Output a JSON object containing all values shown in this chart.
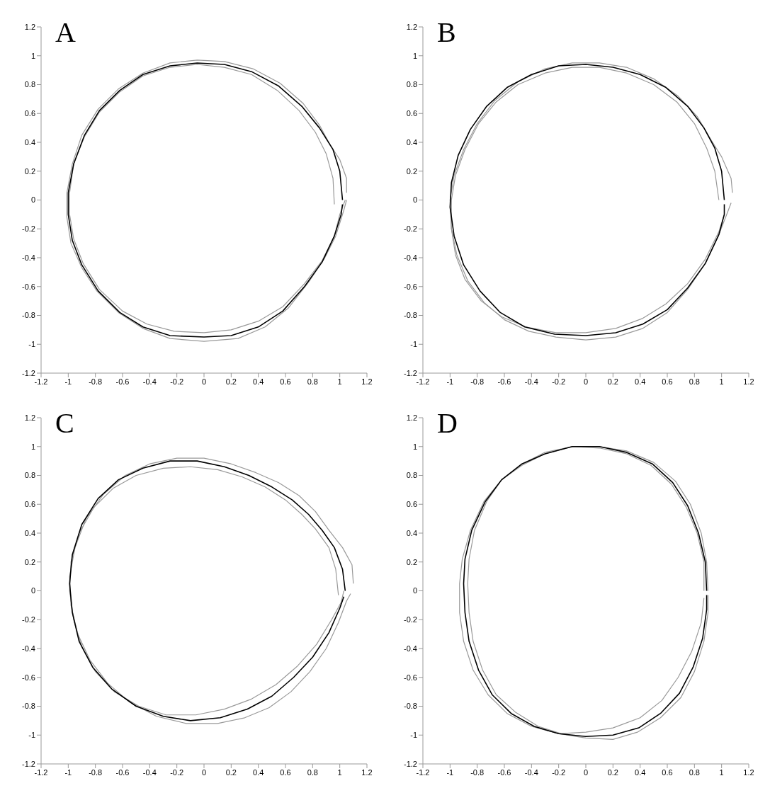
{
  "chart_data": [
    {
      "type": "line",
      "title": "A",
      "xlim": [
        -1.2,
        1.2
      ],
      "ylim": [
        -1.2,
        1.2
      ],
      "xticks": [
        -1.2,
        -1,
        -0.8,
        -0.6,
        -0.4,
        -0.2,
        0,
        0.2,
        0.4,
        0.6,
        0.8,
        1,
        1.2
      ],
      "yticks": [
        -1.2,
        -1,
        -0.8,
        -0.6,
        -0.4,
        -0.2,
        0,
        0.2,
        0.4,
        0.6,
        0.8,
        1,
        1.2
      ],
      "marker": "none",
      "series": [
        {
          "color": "#999999",
          "x": [
            1.05,
            1.05,
            1.0,
            0.93,
            0.85,
            0.73,
            0.56,
            0.36,
            0.15,
            -0.05,
            -0.25,
            -0.45,
            -0.63,
            -0.78,
            -0.9,
            -0.97,
            -1.01,
            -1.01,
            -0.98,
            -0.9,
            -0.79,
            -0.63,
            -0.45,
            -0.25,
            0,
            0.25,
            0.45,
            0.62,
            0.77,
            0.89,
            0.97,
            1.03,
            1.05
          ],
          "values": [
            0.05,
            0.15,
            0.28,
            0.38,
            0.52,
            0.67,
            0.81,
            0.91,
            0.96,
            0.97,
            0.95,
            0.88,
            0.77,
            0.63,
            0.45,
            0.25,
            0.05,
            -0.12,
            -0.3,
            -0.47,
            -0.63,
            -0.78,
            -0.89,
            -0.96,
            -0.98,
            -0.96,
            -0.88,
            -0.75,
            -0.57,
            -0.4,
            -0.25,
            -0.07,
            0
          ]
        },
        {
          "color": "#999999",
          "x": [
            0.96,
            0.95,
            0.9,
            0.82,
            0.7,
            0.54,
            0.35,
            0.15,
            -0.05,
            -0.25,
            -0.45,
            -0.62,
            -0.77,
            -0.88,
            -0.96,
            -0.99,
            -0.99,
            -0.96,
            -0.89,
            -0.77,
            -0.6,
            -0.42,
            -0.22,
            0,
            0.2,
            0.4,
            0.58,
            0.74,
            0.87,
            0.96,
            1.0,
            1.04
          ],
          "values": [
            -0.03,
            0.15,
            0.32,
            0.47,
            0.62,
            0.76,
            0.87,
            0.92,
            0.94,
            0.92,
            0.86,
            0.75,
            0.61,
            0.44,
            0.25,
            0.05,
            -0.1,
            -0.27,
            -0.44,
            -0.62,
            -0.77,
            -0.86,
            -0.91,
            -0.92,
            -0.9,
            -0.84,
            -0.74,
            -0.58,
            -0.42,
            -0.25,
            -0.1,
            0
          ]
        },
        {
          "color": "#000000",
          "x": [
            1.02,
            1.0,
            0.95,
            0.85,
            0.72,
            0.55,
            0.35,
            0.15,
            -0.05,
            -0.25,
            -0.45,
            -0.62,
            -0.77,
            -0.88,
            -0.96,
            -1.0,
            -1.0,
            -0.97,
            -0.9,
            -0.78,
            -0.62,
            -0.45,
            -0.25,
            0,
            0.2,
            0.4,
            0.58,
            0.74,
            0.87,
            0.96,
            1.01,
            1.02
          ],
          "values": [
            0,
            0.2,
            0.35,
            0.5,
            0.65,
            0.79,
            0.89,
            0.94,
            0.95,
            0.93,
            0.87,
            0.76,
            0.62,
            0.45,
            0.25,
            0.05,
            -0.1,
            -0.28,
            -0.45,
            -0.63,
            -0.78,
            -0.88,
            -0.94,
            -0.95,
            -0.94,
            -0.88,
            -0.77,
            -0.6,
            -0.43,
            -0.25,
            -0.1,
            -0.03
          ]
        }
      ]
    },
    {
      "type": "line",
      "title": "B",
      "xlim": [
        -1.2,
        1.2
      ],
      "ylim": [
        -1.2,
        1.2
      ],
      "xticks": [
        -1.2,
        -1,
        -0.8,
        -0.6,
        -0.4,
        -0.2,
        0,
        0.2,
        0.4,
        0.6,
        0.8,
        1,
        1.2
      ],
      "yticks": [
        -1.2,
        -1,
        -0.8,
        -0.6,
        -0.4,
        -0.2,
        0,
        0.2,
        0.4,
        0.6,
        0.8,
        1,
        1.2
      ],
      "marker": "none",
      "series": [
        {
          "color": "#999999",
          "x": [
            1.08,
            1.07,
            1.0,
            0.92,
            0.82,
            0.68,
            0.5,
            0.3,
            0.1,
            -0.1,
            -0.3,
            -0.5,
            -0.67,
            -0.8,
            -0.9,
            -0.97,
            -1.0,
            -0.99,
            -0.95,
            -0.87,
            -0.75,
            -0.6,
            -0.42,
            -0.22,
            0,
            0.22,
            0.42,
            0.6,
            0.75,
            0.88,
            0.98,
            1.05,
            1.07
          ],
          "values": [
            0.05,
            0.15,
            0.3,
            0.42,
            0.58,
            0.72,
            0.84,
            0.92,
            0.95,
            0.95,
            0.91,
            0.82,
            0.69,
            0.53,
            0.35,
            0.17,
            0,
            -0.2,
            -0.38,
            -0.56,
            -0.71,
            -0.83,
            -0.91,
            -0.95,
            -0.97,
            -0.95,
            -0.89,
            -0.78,
            -0.62,
            -0.44,
            -0.24,
            -0.07,
            -0.02
          ]
        },
        {
          "color": "#999999",
          "x": [
            0.98,
            0.95,
            0.89,
            0.8,
            0.67,
            0.5,
            0.3,
            0.1,
            -0.1,
            -0.3,
            -0.5,
            -0.66,
            -0.79,
            -0.89,
            -0.96,
            -0.99,
            -0.99,
            -0.96,
            -0.89,
            -0.77,
            -0.62,
            -0.44,
            -0.22,
            0,
            0.22,
            0.42,
            0.59,
            0.75,
            0.88,
            0.98,
            1.02
          ],
          "values": [
            0,
            0.2,
            0.36,
            0.53,
            0.68,
            0.8,
            0.88,
            0.92,
            0.92,
            0.88,
            0.8,
            0.68,
            0.53,
            0.35,
            0.17,
            0,
            -0.2,
            -0.38,
            -0.55,
            -0.7,
            -0.81,
            -0.88,
            -0.92,
            -0.92,
            -0.89,
            -0.82,
            -0.72,
            -0.58,
            -0.41,
            -0.22,
            -0.1
          ]
        },
        {
          "color": "#000000",
          "x": [
            1.02,
            1.0,
            0.95,
            0.87,
            0.75,
            0.59,
            0.4,
            0.2,
            0,
            -0.2,
            -0.4,
            -0.58,
            -0.73,
            -0.85,
            -0.94,
            -0.99,
            -1.0,
            -0.97,
            -0.9,
            -0.78,
            -0.63,
            -0.45,
            -0.23,
            0,
            0.22,
            0.42,
            0.6,
            0.75,
            0.88,
            0.98,
            1.02,
            1.02
          ],
          "values": [
            0,
            0.2,
            0.36,
            0.5,
            0.65,
            0.78,
            0.87,
            0.92,
            0.94,
            0.93,
            0.87,
            0.78,
            0.65,
            0.49,
            0.31,
            0.12,
            -0.05,
            -0.25,
            -0.45,
            -0.63,
            -0.78,
            -0.88,
            -0.93,
            -0.94,
            -0.92,
            -0.86,
            -0.76,
            -0.61,
            -0.44,
            -0.24,
            -0.1,
            -0.03
          ]
        }
      ]
    },
    {
      "type": "line",
      "title": "C",
      "xlim": [
        -1.2,
        1.2
      ],
      "ylim": [
        -1.2,
        1.2
      ],
      "xticks": [
        -1.2,
        -1,
        -0.8,
        -0.6,
        -0.4,
        -0.2,
        0,
        0.2,
        0.4,
        0.6,
        0.8,
        1,
        1.2
      ],
      "yticks": [
        -1.2,
        -1,
        -0.8,
        -0.6,
        -0.4,
        -0.2,
        0,
        0.2,
        0.4,
        0.6,
        0.8,
        1,
        1.2
      ],
      "marker": "none",
      "series": [
        {
          "color": "#999999",
          "x": [
            1.1,
            1.09,
            1.02,
            0.92,
            0.82,
            0.7,
            0.55,
            0.38,
            0.2,
            0,
            -0.2,
            -0.4,
            -0.58,
            -0.74,
            -0.87,
            -0.95,
            -0.99,
            -0.98,
            -0.93,
            -0.84,
            -0.71,
            -0.55,
            -0.35,
            -0.13,
            0.1,
            0.3,
            0.48,
            0.64,
            0.78,
            0.9,
            0.99,
            1.05,
            1.08
          ],
          "values": [
            0.05,
            0.18,
            0.3,
            0.42,
            0.55,
            0.66,
            0.75,
            0.82,
            0.88,
            0.92,
            0.92,
            0.88,
            0.8,
            0.67,
            0.5,
            0.3,
            0.1,
            -0.1,
            -0.3,
            -0.48,
            -0.64,
            -0.77,
            -0.87,
            -0.92,
            -0.92,
            -0.88,
            -0.81,
            -0.7,
            -0.56,
            -0.4,
            -0.22,
            -0.07,
            -0.02
          ]
        },
        {
          "color": "#999999",
          "x": [
            0.99,
            0.97,
            0.92,
            0.82,
            0.72,
            0.6,
            0.45,
            0.28,
            0.1,
            -0.1,
            -0.3,
            -0.5,
            -0.67,
            -0.81,
            -0.92,
            -0.98,
            -0.99,
            -0.96,
            -0.9,
            -0.8,
            -0.66,
            -0.48,
            -0.28,
            -0.06,
            0.15,
            0.35,
            0.53,
            0.69,
            0.83,
            0.94,
            1.01,
            1.03
          ],
          "values": [
            -0.03,
            0.15,
            0.3,
            0.43,
            0.53,
            0.63,
            0.72,
            0.79,
            0.84,
            0.86,
            0.85,
            0.8,
            0.71,
            0.58,
            0.4,
            0.2,
            0,
            -0.2,
            -0.39,
            -0.56,
            -0.7,
            -0.8,
            -0.86,
            -0.86,
            -0.82,
            -0.75,
            -0.65,
            -0.52,
            -0.37,
            -0.2,
            -0.08,
            0
          ]
        },
        {
          "color": "#000000",
          "x": [
            1.04,
            1.02,
            0.96,
            0.87,
            0.77,
            0.65,
            0.5,
            0.33,
            0.15,
            -0.05,
            -0.25,
            -0.45,
            -0.63,
            -0.78,
            -0.9,
            -0.97,
            -0.99,
            -0.97,
            -0.92,
            -0.82,
            -0.68,
            -0.5,
            -0.3,
            -0.1,
            0.12,
            0.32,
            0.5,
            0.66,
            0.8,
            0.92,
            1.0,
            1.03
          ],
          "values": [
            0,
            0.15,
            0.3,
            0.42,
            0.53,
            0.63,
            0.72,
            0.8,
            0.86,
            0.9,
            0.9,
            0.85,
            0.77,
            0.64,
            0.46,
            0.25,
            0.05,
            -0.15,
            -0.35,
            -0.53,
            -0.68,
            -0.8,
            -0.87,
            -0.9,
            -0.88,
            -0.82,
            -0.73,
            -0.6,
            -0.46,
            -0.29,
            -0.12,
            -0.04
          ]
        }
      ]
    },
    {
      "type": "line",
      "title": "D",
      "xlim": [
        -1.2,
        1.2
      ],
      "ylim": [
        -1.2,
        1.2
      ],
      "xticks": [
        -1.2,
        -1,
        -0.8,
        -0.6,
        -0.4,
        -0.2,
        0,
        0.2,
        0.4,
        0.6,
        0.8,
        1,
        1.2
      ],
      "yticks": [
        -1.2,
        -1,
        -0.8,
        -0.6,
        -0.4,
        -0.2,
        0,
        0.2,
        0.4,
        0.6,
        0.8,
        1,
        1.2
      ],
      "marker": "none",
      "series": [
        {
          "color": "#999999",
          "x": [
            0.9,
            0.89,
            0.85,
            0.77,
            0.66,
            0.5,
            0.3,
            0.1,
            -0.1,
            -0.3,
            -0.47,
            -0.62,
            -0.75,
            -0.85,
            -0.91,
            -0.93,
            -0.93,
            -0.9,
            -0.83,
            -0.72,
            -0.58,
            -0.4,
            -0.2,
            0,
            0.2,
            0.38,
            0.55,
            0.7,
            0.8,
            0.87,
            0.9,
            0.9
          ],
          "values": [
            0,
            0.2,
            0.4,
            0.6,
            0.76,
            0.89,
            0.97,
            1.0,
            1.0,
            0.96,
            0.88,
            0.77,
            0.62,
            0.42,
            0.22,
            0.05,
            -0.15,
            -0.35,
            -0.55,
            -0.72,
            -0.85,
            -0.94,
            -0.99,
            -1.02,
            -1.03,
            -0.98,
            -0.88,
            -0.74,
            -0.56,
            -0.35,
            -0.15,
            -0.03
          ]
        },
        {
          "color": "#999999",
          "x": [
            0.87,
            0.87,
            0.82,
            0.74,
            0.63,
            0.48,
            0.3,
            0.1,
            -0.1,
            -0.3,
            -0.47,
            -0.62,
            -0.73,
            -0.82,
            -0.86,
            -0.87,
            -0.86,
            -0.83,
            -0.76,
            -0.66,
            -0.52,
            -0.35,
            -0.18,
            0,
            0.2,
            0.4,
            0.56,
            0.68,
            0.78,
            0.85,
            0.87
          ],
          "values": [
            0,
            0.2,
            0.4,
            0.58,
            0.74,
            0.87,
            0.95,
            0.99,
            1.0,
            0.95,
            0.87,
            0.77,
            0.62,
            0.42,
            0.22,
            0.05,
            -0.15,
            -0.35,
            -0.55,
            -0.72,
            -0.84,
            -0.94,
            -0.99,
            -0.98,
            -0.95,
            -0.88,
            -0.76,
            -0.6,
            -0.42,
            -0.22,
            -0.05
          ]
        },
        {
          "color": "#000000",
          "x": [
            0.89,
            0.88,
            0.83,
            0.75,
            0.64,
            0.49,
            0.3,
            0.1,
            -0.1,
            -0.3,
            -0.47,
            -0.62,
            -0.74,
            -0.84,
            -0.89,
            -0.9,
            -0.89,
            -0.86,
            -0.79,
            -0.69,
            -0.55,
            -0.38,
            -0.2,
            0,
            0.2,
            0.39,
            0.55,
            0.69,
            0.79,
            0.86,
            0.89,
            0.89
          ],
          "values": [
            0,
            0.2,
            0.4,
            0.59,
            0.75,
            0.88,
            0.96,
            1.0,
            1.0,
            0.95,
            0.88,
            0.77,
            0.62,
            0.42,
            0.22,
            0.05,
            -0.15,
            -0.35,
            -0.55,
            -0.72,
            -0.85,
            -0.94,
            -0.99,
            -1.01,
            -1.0,
            -0.95,
            -0.85,
            -0.71,
            -0.53,
            -0.33,
            -0.13,
            -0.03
          ]
        }
      ]
    }
  ]
}
